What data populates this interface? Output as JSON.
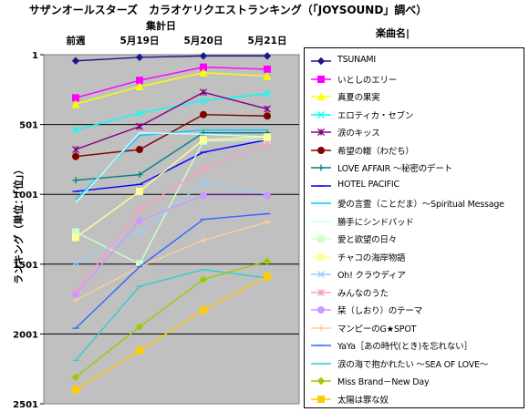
{
  "title": "サザンオールスターズ　カラオケリクエストランキング（「JOYSOUND」調べ）",
  "aggregation_label": "集計日",
  "song_column_label": "楽曲名|",
  "chart_data": {
    "type": "line",
    "title": "サザンオールスターズ　カラオケリクエストランキング（「JOYSOUND」調べ）",
    "categories": [
      "前週",
      "5月19日",
      "5月20日",
      "5月21日"
    ],
    "ylabel": "ランキング（単位：「位」）",
    "ylim": [
      1,
      2501
    ],
    "y_inverted": true,
    "yticks": [
      1,
      501,
      1001,
      1501,
      2001,
      2501
    ],
    "grid": true,
    "legend_position": "right",
    "plot_background": "#c0c0c0",
    "series": [
      {
        "name": "TSUNAMI",
        "values": [
          45,
          20,
          10,
          10
        ],
        "color": "#1a1a8c",
        "marker": "diamond"
      },
      {
        "name": "いとしのエリー",
        "values": [
          310,
          185,
          90,
          105
        ],
        "color": "#ff00ff",
        "marker": "square"
      },
      {
        "name": "真夏の果実",
        "values": [
          355,
          230,
          130,
          155
        ],
        "color": "#ffff00",
        "marker": "triangle"
      },
      {
        "name": "エロティカ・セブン",
        "values": [
          540,
          420,
          330,
          280
        ],
        "color": "#00ffff",
        "marker": "x"
      },
      {
        "name": "涙のキッス",
        "values": [
          680,
          515,
          270,
          390
        ],
        "color": "#800080",
        "marker": "star"
      },
      {
        "name": "希望の轍（わだち）",
        "values": [
          730,
          680,
          430,
          440
        ],
        "color": "#800000",
        "marker": "circle"
      },
      {
        "name": "LOVE AFFAIR ～秘密のデート",
        "values": [
          900,
          860,
          560,
          560
        ],
        "color": "#008080",
        "marker": "plus"
      },
      {
        "name": "HOTEL PACIFIC",
        "values": [
          980,
          930,
          700,
          610
        ],
        "color": "#0000ff",
        "marker": "dash"
      },
      {
        "name": "愛の言霊（ことだま）～Spiritual Message",
        "values": [
          1040,
          580,
          540,
          540
        ],
        "color": "#00ccff",
        "marker": "none"
      },
      {
        "name": "勝手にシンドバッド",
        "values": [
          1060,
          560,
          570,
          590
        ],
        "color": "#ccffff",
        "marker": "none"
      },
      {
        "name": "愛と欲望の日々",
        "values": [
          1270,
          1500,
          620,
          610
        ],
        "color": "#ccffcc",
        "marker": "square"
      },
      {
        "name": "チャコの海岸物語",
        "values": [
          1310,
          980,
          610,
          590
        ],
        "color": "#ffff99",
        "marker": "square"
      },
      {
        "name": "Oh! クラウディア",
        "values": [
          1490,
          1270,
          920,
          1000
        ],
        "color": "#99ccff",
        "marker": "x"
      },
      {
        "name": "みんなのうた",
        "values": [
          1700,
          1110,
          820,
          640
        ],
        "color": "#ff99cc",
        "marker": "star"
      },
      {
        "name": "栞（しおり）のテーマ",
        "values": [
          1720,
          1190,
          1010,
          1010
        ],
        "color": "#cc99ff",
        "marker": "circle"
      },
      {
        "name": "マンピーのG★SPOT",
        "values": [
          1760,
          1520,
          1330,
          1200
        ],
        "color": "#ffcc99",
        "marker": "plus"
      },
      {
        "name": "YaYa［あの時代(とき)を忘れない］",
        "values": [
          1960,
          1520,
          1180,
          1140
        ],
        "color": "#3366ff",
        "marker": "dash"
      },
      {
        "name": "涙の海で抱かれたい ～SEA OF LOVE～",
        "values": [
          2190,
          1660,
          1540,
          1600
        ],
        "color": "#33cccc",
        "marker": "dash"
      },
      {
        "name": "Miss Brand－New Day",
        "values": [
          2310,
          1950,
          1610,
          1480
        ],
        "color": "#99cc00",
        "marker": "diamond"
      },
      {
        "name": "太陽は罪な奴",
        "values": [
          2400,
          2120,
          1830,
          1590
        ],
        "color": "#ffcc00",
        "marker": "square"
      }
    ]
  }
}
